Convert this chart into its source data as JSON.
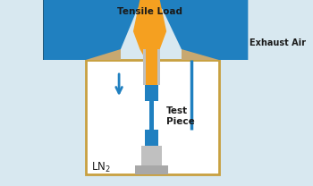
{
  "bg_color": "#d8e8f0",
  "title": "Tensile Load",
  "exhaust_label": "Exhaust Air",
  "ln2_label": "LN₂",
  "test_piece_label": "Test\nPiece",
  "colors": {
    "blue": "#2080c0",
    "orange": "#f5a020",
    "gray": "#a8a8a8",
    "light_gray": "#c0c0c0",
    "tan": "#c8a870",
    "dark": "#1a1a1a",
    "black": "#222222",
    "white": "#ffffff",
    "box_border": "#c8a040",
    "dark_brown": "#2a1a0a"
  },
  "figsize": [
    3.5,
    2.08
  ],
  "dpi": 100
}
